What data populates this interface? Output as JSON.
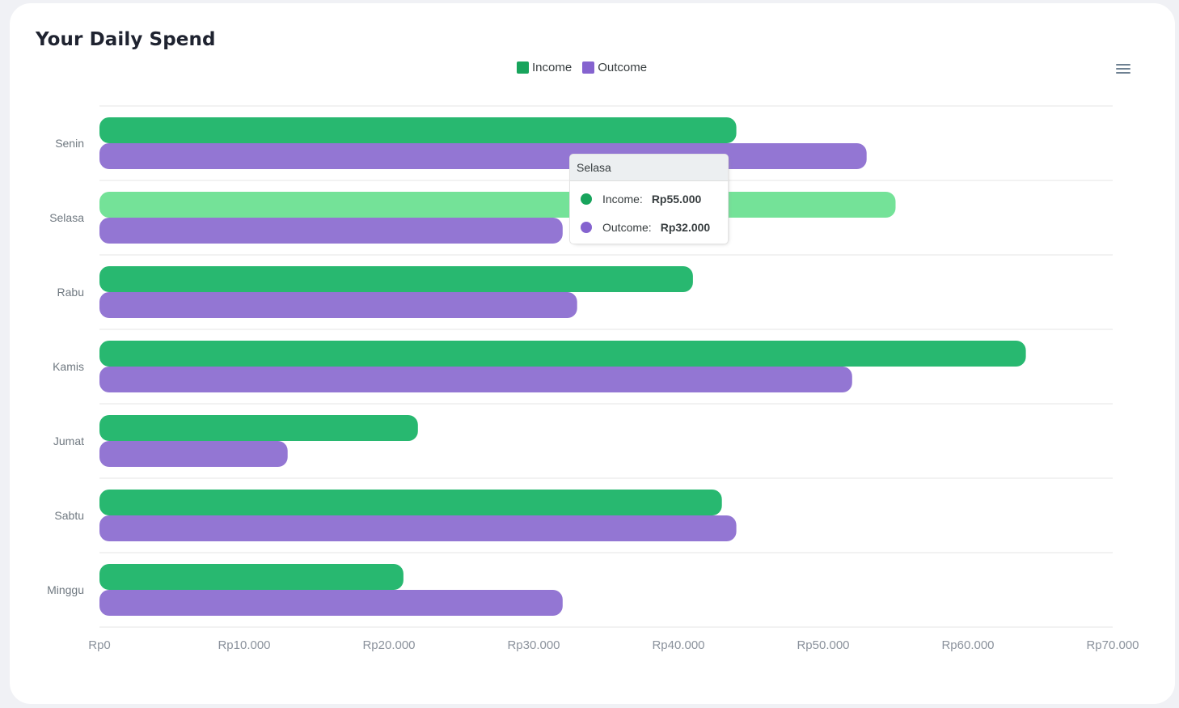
{
  "title": "Your Daily Spend",
  "legend": {
    "income_label": "Income",
    "outcome_label": "Outcome"
  },
  "colors": {
    "income": "#28b870",
    "income_legend": "#18a45c",
    "income_hover": "#74e298",
    "outcome": "#9376d3",
    "outcome_legend": "#8563cf",
    "grid": "#e6e6e6",
    "axis_text": "#8b929c",
    "category_text": "#6f7880"
  },
  "menu_icon": "hamburger-menu-icon",
  "chart_data": {
    "type": "bar",
    "orientation": "horizontal",
    "categories": [
      "Senin",
      "Selasa",
      "Rabu",
      "Kamis",
      "Jumat",
      "Sabtu",
      "Minggu"
    ],
    "series": [
      {
        "name": "Income",
        "values": [
          44000,
          55000,
          41000,
          64000,
          22000,
          43000,
          21000
        ]
      },
      {
        "name": "Outcome",
        "values": [
          53000,
          32000,
          33000,
          52000,
          13000,
          44000,
          32000
        ]
      }
    ],
    "xlim": [
      0,
      70000
    ],
    "x_ticks": [
      0,
      10000,
      20000,
      30000,
      40000,
      50000,
      60000,
      70000
    ],
    "x_tick_labels": [
      "Rp0",
      "Rp10.000",
      "Rp20.000",
      "Rp30.000",
      "Rp40.000",
      "Rp50.000",
      "Rp60.000",
      "Rp70.000"
    ],
    "grid": true,
    "legend_position": "top-center",
    "highlighted_category": "Selasa"
  },
  "tooltip": {
    "title": "Selasa",
    "rows": [
      {
        "label": "Income:",
        "value": "Rp55.000"
      },
      {
        "label": "Outcome:",
        "value": "Rp32.000"
      }
    ]
  }
}
